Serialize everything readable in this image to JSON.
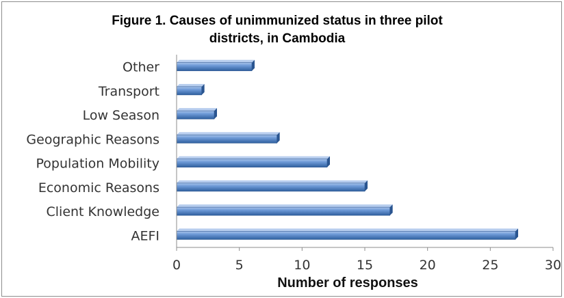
{
  "chart_data": {
    "type": "bar",
    "orientation": "horizontal",
    "title_line1": "Figure 1. Causes of  unimmunized status in three pilot",
    "title_line2": "districts, in Cambodia",
    "xlabel": "Number of responses",
    "ylabel": "",
    "categories": [
      "AEFI",
      "Client Knowledge",
      "Economic Reasons",
      "Population Mobility",
      "Geographic Reasons",
      "Low Season",
      "Transport",
      "Other"
    ],
    "values": [
      27,
      17,
      15,
      12,
      8,
      3,
      2,
      6
    ],
    "xlim": [
      0,
      30
    ],
    "ticks": [
      0,
      5,
      10,
      15,
      20,
      25,
      30
    ],
    "grid": false,
    "legend": "none",
    "bar_color": "#4a7ebb"
  }
}
